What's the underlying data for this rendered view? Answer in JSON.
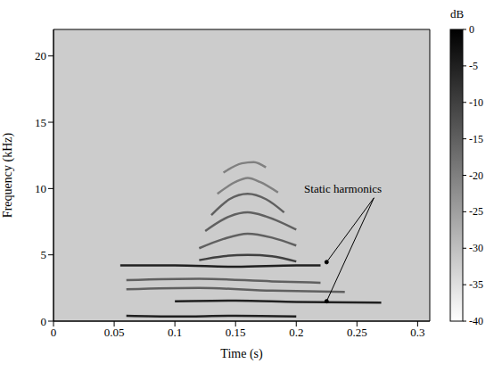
{
  "chart_data": {
    "type": "spectrogram",
    "xlabel": "Time (s)",
    "ylabel": "Frequency (kHz)",
    "xlim": [
      0,
      0.31
    ],
    "xticks": [
      0,
      0.05,
      0.1,
      0.15,
      0.2,
      0.25,
      0.3
    ],
    "ylim": [
      0,
      22
    ],
    "yticks": [
      0,
      5,
      10,
      15,
      20
    ],
    "background_level": -32,
    "colorbar": {
      "label": "dB",
      "range": [
        -40,
        0
      ],
      "ticks": [
        0,
        -5,
        -10,
        -15,
        -20,
        -25,
        -30,
        -35,
        -40
      ]
    },
    "series": [
      {
        "x": [
          0.06,
          0.1,
          0.15,
          0.2
        ],
        "y": [
          0.4,
          0.35,
          0.4,
          0.35
        ],
        "level": -5
      },
      {
        "x": [
          0.1,
          0.15,
          0.2,
          0.27
        ],
        "y": [
          1.5,
          1.55,
          1.45,
          1.4
        ],
        "level": -5
      },
      {
        "x": [
          0.06,
          0.12,
          0.18,
          0.24
        ],
        "y": [
          2.4,
          2.5,
          2.3,
          2.2
        ],
        "level": -15
      },
      {
        "x": [
          0.06,
          0.12,
          0.18,
          0.22
        ],
        "y": [
          3.1,
          3.2,
          3.0,
          2.9
        ],
        "level": -15
      },
      {
        "x": [
          0.055,
          0.1,
          0.15,
          0.2,
          0.22
        ],
        "y": [
          4.2,
          4.2,
          4.1,
          4.2,
          4.2
        ],
        "level": -5
      },
      {
        "x": [
          0.12,
          0.14,
          0.16,
          0.18,
          0.2
        ],
        "y": [
          4.6,
          4.9,
          5.0,
          4.9,
          4.5
        ],
        "level": -10
      },
      {
        "x": [
          0.12,
          0.14,
          0.16,
          0.18,
          0.2
        ],
        "y": [
          5.5,
          6.2,
          6.6,
          6.3,
          5.7
        ],
        "level": -15
      },
      {
        "x": [
          0.125,
          0.145,
          0.16,
          0.175,
          0.2
        ],
        "y": [
          6.8,
          7.9,
          8.2,
          7.9,
          6.9
        ],
        "level": -15
      },
      {
        "x": [
          0.13,
          0.145,
          0.16,
          0.175,
          0.19
        ],
        "y": [
          8.0,
          9.2,
          9.6,
          9.2,
          8.2
        ],
        "level": -15
      },
      {
        "x": [
          0.135,
          0.15,
          0.16,
          0.17,
          0.185
        ],
        "y": [
          9.6,
          10.5,
          10.8,
          10.5,
          9.7
        ],
        "level": -20
      },
      {
        "x": [
          0.14,
          0.155,
          0.165,
          0.175
        ],
        "y": [
          11.2,
          11.9,
          12.0,
          11.6
        ],
        "level": -20
      }
    ],
    "annotations": [
      {
        "text": "Static harmonics",
        "x": 0.205,
        "y": 10,
        "arrow_from": [
          0.264,
          9.3
        ],
        "arrow_to": [
          [
            0.225,
            4.45
          ],
          [
            0.225,
            1.5
          ]
        ]
      }
    ]
  }
}
